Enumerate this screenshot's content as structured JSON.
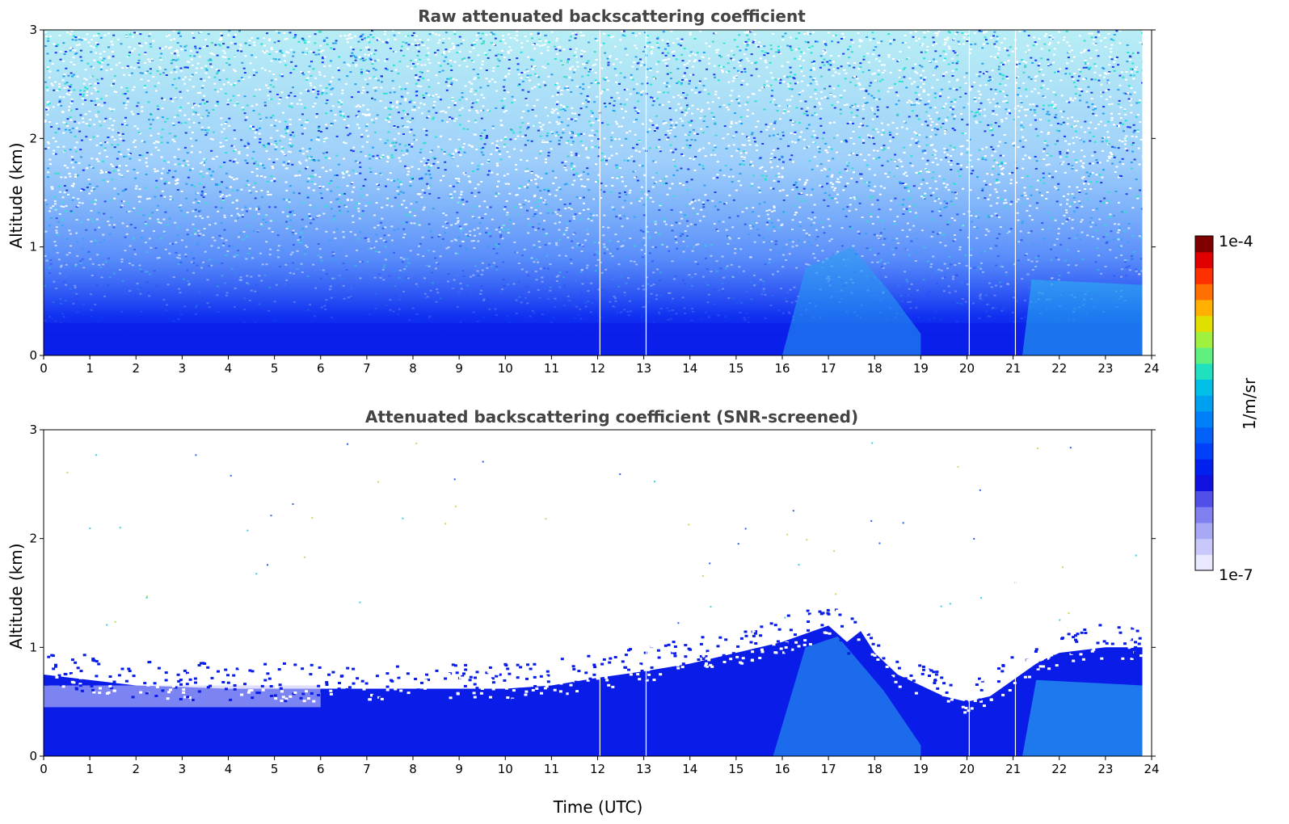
{
  "chart_data": [
    {
      "type": "heatmap",
      "title": "Raw attenuated backscattering coefficient",
      "xlabel": "",
      "ylabel": "Altitude (km)",
      "xlim": [
        0,
        24
      ],
      "ylim": [
        0,
        3
      ],
      "xticks": [
        "0",
        "1",
        "2",
        "3",
        "4",
        "5",
        "6",
        "7",
        "8",
        "9",
        "10",
        "11",
        "12",
        "13",
        "14",
        "15",
        "16",
        "17",
        "18",
        "19",
        "20",
        "21",
        "22",
        "23",
        "24"
      ],
      "yticks": [
        "0",
        "1",
        "2",
        "3"
      ],
      "data_gaps_utc": [
        12.05,
        13.05,
        20.05,
        21.05
      ],
      "data_end_utc": 23.8,
      "screened": false
    },
    {
      "type": "heatmap",
      "title": "Attenuated backscattering coefficient (SNR-screened)",
      "xlabel": "Time (UTC)",
      "ylabel": "Altitude (km)",
      "xlim": [
        0,
        24
      ],
      "ylim": [
        0,
        3
      ],
      "xticks": [
        "0",
        "1",
        "2",
        "3",
        "4",
        "5",
        "6",
        "7",
        "8",
        "9",
        "10",
        "11",
        "12",
        "13",
        "14",
        "15",
        "16",
        "17",
        "18",
        "19",
        "20",
        "21",
        "22",
        "23",
        "24"
      ],
      "yticks": [
        "0",
        "1",
        "2",
        "3"
      ],
      "data_gaps_utc": [
        12.05,
        13.05,
        20.05,
        21.05
      ],
      "data_end_utc": 23.8,
      "screened": true,
      "layer_top_km": [
        [
          0,
          0.75
        ],
        [
          2,
          0.65
        ],
        [
          4,
          0.62
        ],
        [
          6,
          0.62
        ],
        [
          8,
          0.62
        ],
        [
          10,
          0.62
        ],
        [
          11,
          0.65
        ],
        [
          12,
          0.72
        ],
        [
          13,
          0.78
        ],
        [
          14,
          0.85
        ],
        [
          15,
          0.95
        ],
        [
          16,
          1.05
        ],
        [
          17,
          1.2
        ],
        [
          17.4,
          1.05
        ],
        [
          17.7,
          1.15
        ],
        [
          18,
          0.95
        ],
        [
          18.5,
          0.75
        ],
        [
          19,
          0.65
        ],
        [
          19.5,
          0.55
        ],
        [
          20,
          0.5
        ],
        [
          20.5,
          0.55
        ],
        [
          21,
          0.7
        ],
        [
          21.5,
          0.85
        ],
        [
          22,
          0.95
        ],
        [
          23,
          1.0
        ],
        [
          23.8,
          1.0
        ]
      ]
    }
  ],
  "colorbar": {
    "label": "1/m/sr",
    "min_label": "1e-7",
    "max_label": "1e-4",
    "colors": [
      "#e8e8ff",
      "#c8c8fa",
      "#a8a8f5",
      "#8080f0",
      "#5050e8",
      "#1010e0",
      "#0020f0",
      "#0040f8",
      "#0060f8",
      "#0080f8",
      "#00a0f0",
      "#00c0e8",
      "#20e0c0",
      "#60f080",
      "#a0f040",
      "#e0e000",
      "#ffb000",
      "#ff7000",
      "#ff3000",
      "#e00000",
      "#800000"
    ]
  }
}
